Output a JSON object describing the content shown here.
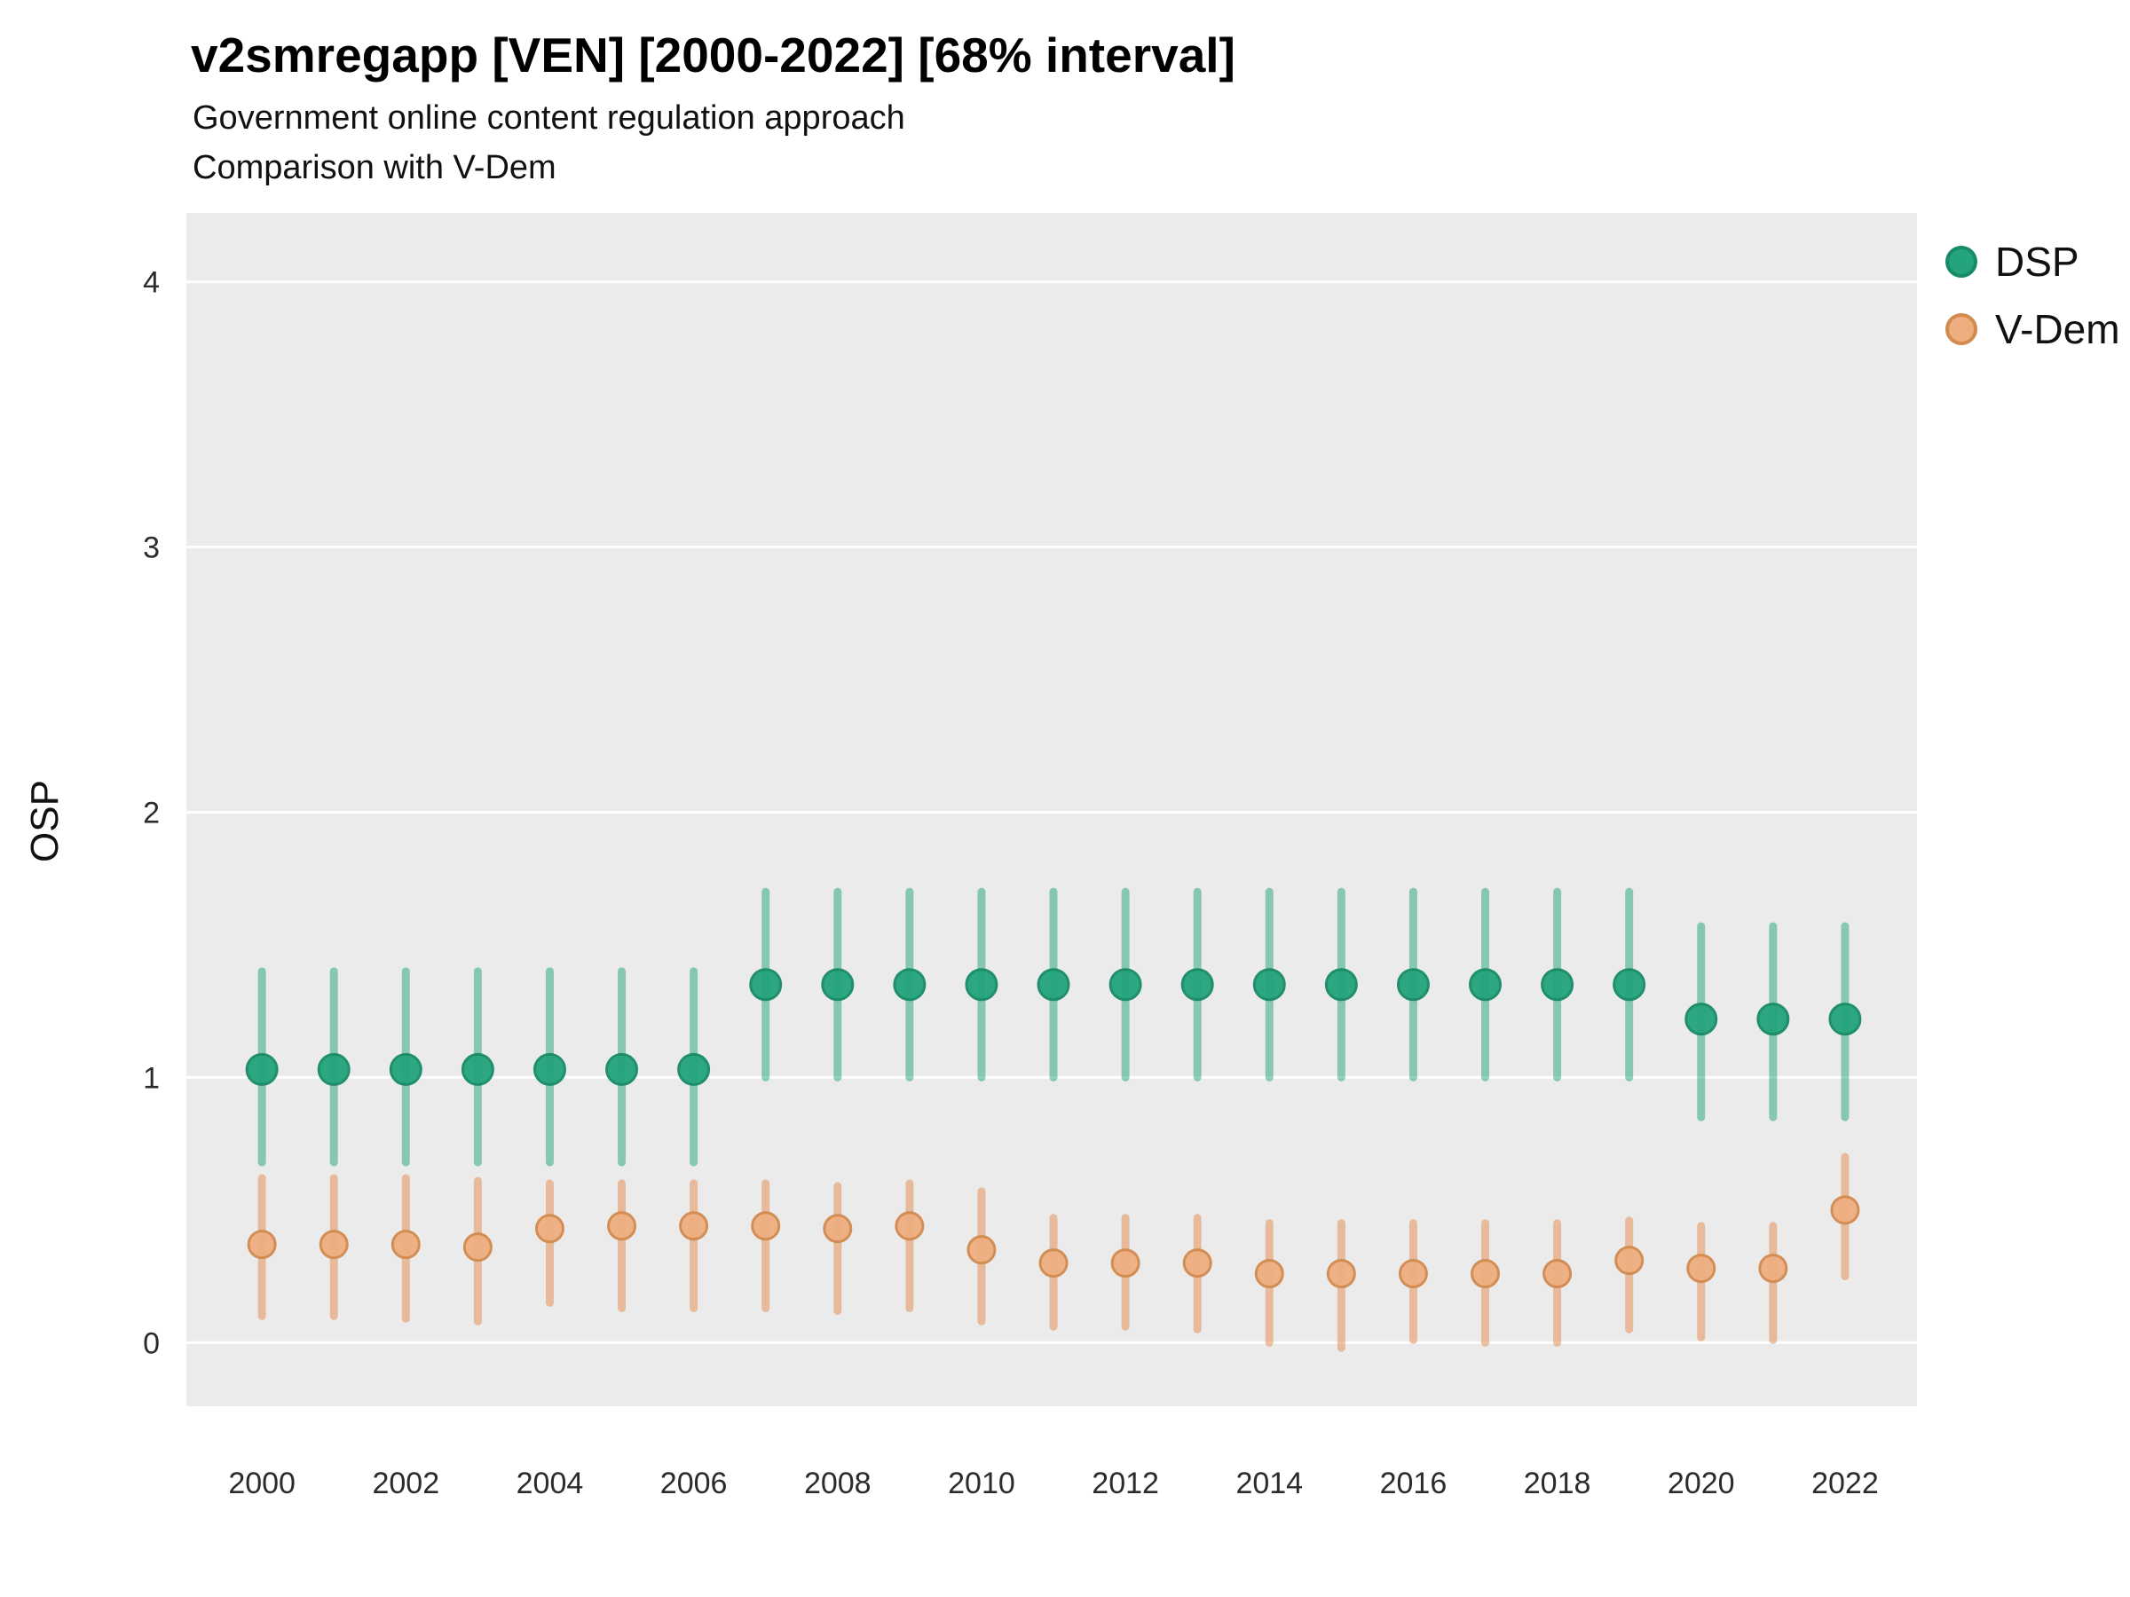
{
  "header": {
    "title": "v2smregapp [VEN] [2000-2022] [68% interval]",
    "subtitle1": "Government online content regulation approach",
    "subtitle2": "Comparison with V-Dem"
  },
  "legend": {
    "items": [
      {
        "label": "DSP",
        "color": "#23a47c",
        "stroke": "#178a66"
      },
      {
        "label": "V-Dem",
        "color": "#f0b econ",
        "stroke": "#d28a4f"
      }
    ]
  },
  "chart_data": {
    "type": "pointrange",
    "title": "v2smregapp [VEN] [2000-2022] [68% interval]",
    "subtitle": "Government online content regulation approach — Comparison with V-Dem",
    "xlabel": "",
    "ylabel": "OSP",
    "xlim": [
      1998.95,
      2023.0
    ],
    "ylim": [
      -0.24,
      4.26
    ],
    "xticks": [
      2000,
      2002,
      2004,
      2006,
      2008,
      2010,
      2012,
      2014,
      2016,
      2018,
      2020,
      2022
    ],
    "yticks": [
      0,
      1,
      2,
      3,
      4
    ],
    "panel_bg": "#ebebeb",
    "grid_color": "#ffffff",
    "x": [
      2000,
      2001,
      2002,
      2003,
      2004,
      2005,
      2006,
      2007,
      2008,
      2009,
      2010,
      2011,
      2012,
      2013,
      2014,
      2015,
      2016,
      2017,
      2018,
      2019,
      2020,
      2021,
      2022
    ],
    "series": [
      {
        "name": "DSP",
        "point_color": "#23a47c",
        "point_stroke": "#178a66",
        "line_color": "#23a47c",
        "line_opacity": 0.5,
        "point_radius": 17,
        "values": [
          1.03,
          1.03,
          1.03,
          1.03,
          1.03,
          1.03,
          1.03,
          1.35,
          1.35,
          1.35,
          1.35,
          1.35,
          1.35,
          1.35,
          1.35,
          1.35,
          1.35,
          1.35,
          1.35,
          1.35,
          1.22,
          1.22,
          1.22
        ],
        "lower": [
          0.68,
          0.68,
          0.68,
          0.68,
          0.68,
          0.68,
          0.68,
          1.0,
          1.0,
          1.0,
          1.0,
          1.0,
          1.0,
          1.0,
          1.0,
          1.0,
          1.0,
          1.0,
          1.0,
          1.0,
          0.85,
          0.85,
          0.85
        ],
        "upper": [
          1.4,
          1.4,
          1.4,
          1.4,
          1.4,
          1.4,
          1.4,
          1.7,
          1.7,
          1.7,
          1.7,
          1.7,
          1.7,
          1.7,
          1.7,
          1.7,
          1.7,
          1.7,
          1.7,
          1.7,
          1.57,
          1.57,
          1.57
        ]
      },
      {
        "name": "V-Dem",
        "point_color": "#eeae80",
        "point_stroke": "#d28a4f",
        "line_color": "#e39a66",
        "line_opacity": 0.6,
        "point_radius": 15,
        "values": [
          0.37,
          0.37,
          0.37,
          0.36,
          0.43,
          0.44,
          0.44,
          0.44,
          0.43,
          0.44,
          0.35,
          0.3,
          0.3,
          0.3,
          0.26,
          0.26,
          0.26,
          0.26,
          0.26,
          0.31,
          0.28,
          0.28,
          0.5
        ],
        "lower": [
          0.1,
          0.1,
          0.09,
          0.08,
          0.15,
          0.13,
          0.13,
          0.13,
          0.12,
          0.13,
          0.08,
          0.06,
          0.06,
          0.05,
          0.0,
          -0.02,
          0.01,
          0.0,
          0.0,
          0.05,
          0.02,
          0.01,
          0.25
        ],
        "upper": [
          0.62,
          0.62,
          0.62,
          0.61,
          0.6,
          0.6,
          0.6,
          0.6,
          0.59,
          0.6,
          0.57,
          0.47,
          0.47,
          0.47,
          0.45,
          0.45,
          0.45,
          0.45,
          0.45,
          0.46,
          0.44,
          0.44,
          0.7
        ]
      }
    ]
  }
}
